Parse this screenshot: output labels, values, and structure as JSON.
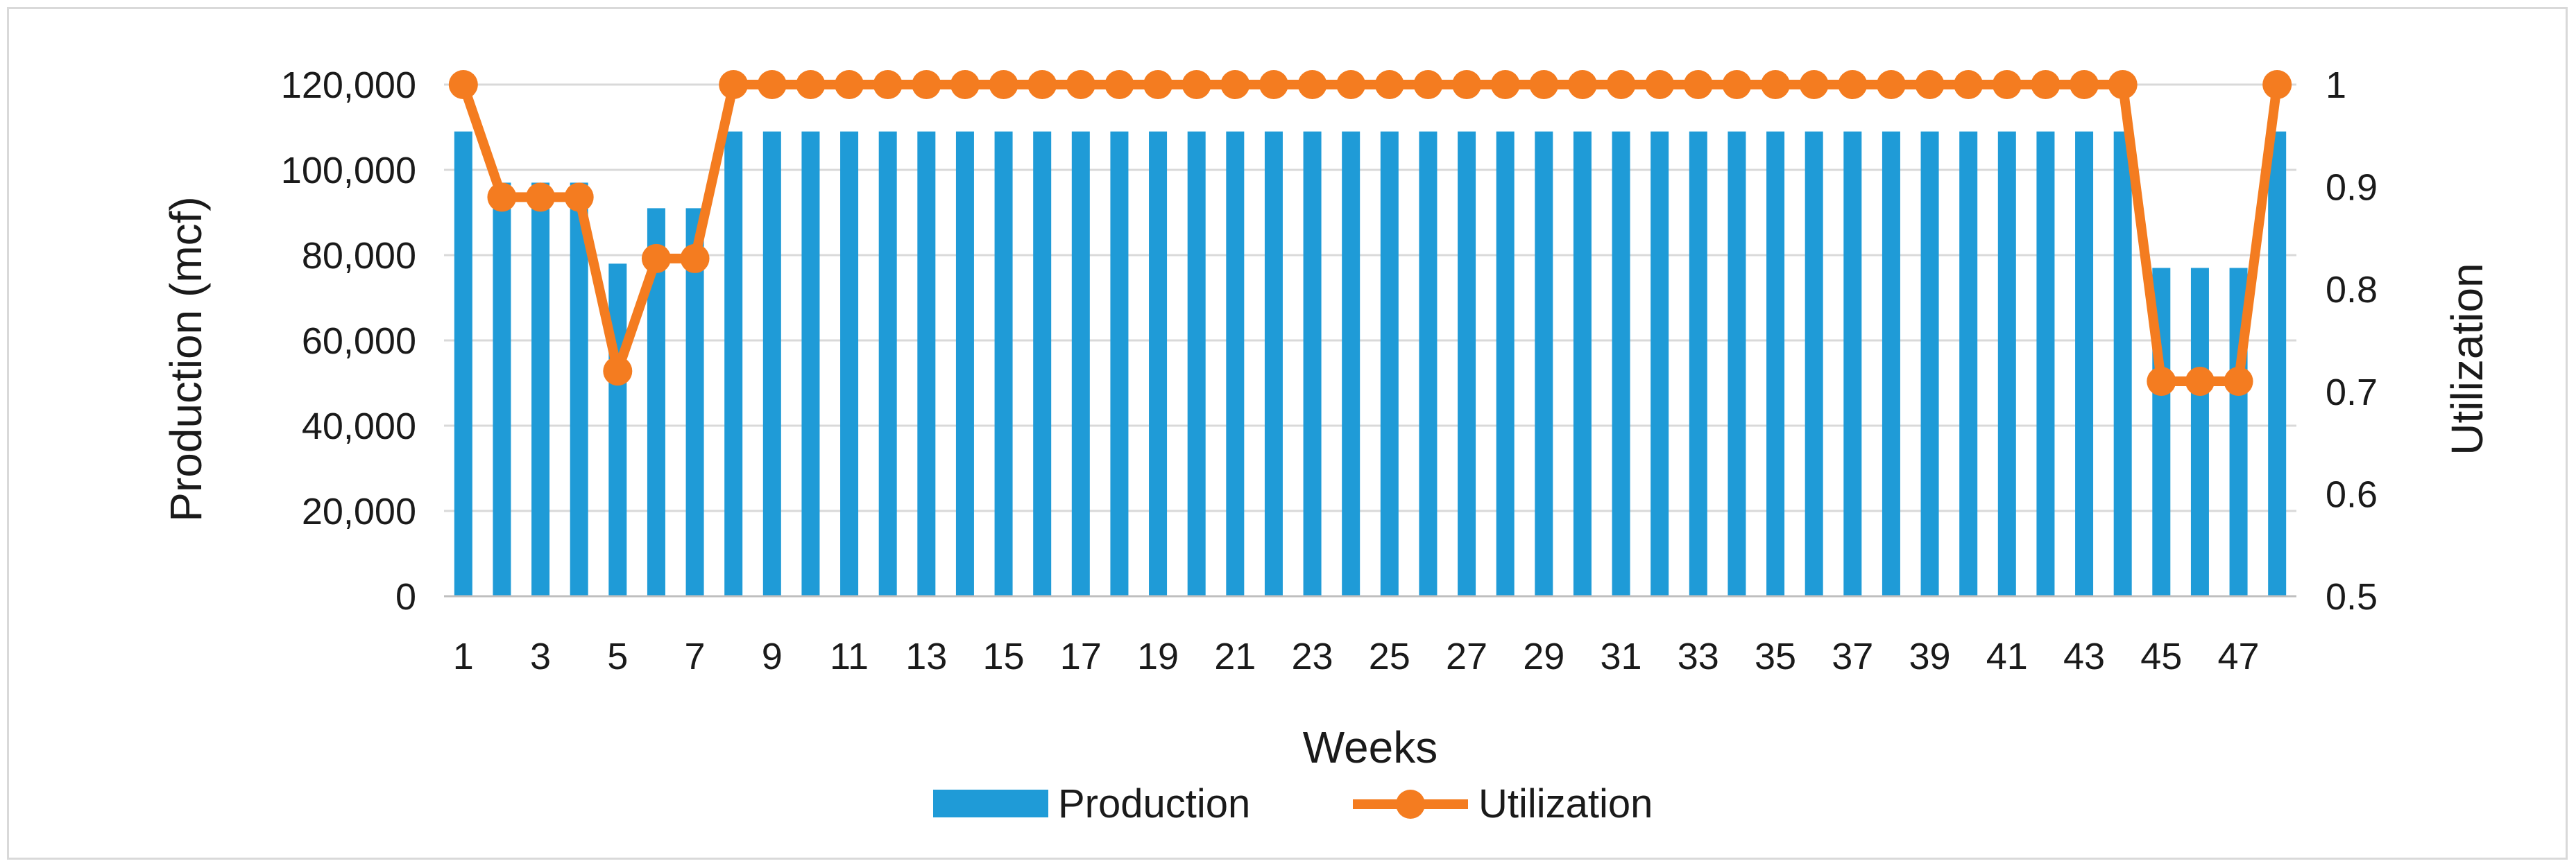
{
  "chart_data": {
    "type": "bar",
    "title": "",
    "xlabel": "Weeks",
    "ylabel": "Production (mcf)",
    "y2label": "Utilization",
    "ylim": [
      0,
      120000
    ],
    "y2lim": [
      0.5,
      1
    ],
    "y_ticks": [
      "0",
      "20,000",
      "40,000",
      "60,000",
      "80,000",
      "100,000",
      "120,000"
    ],
    "y_tick_values": [
      0,
      20000,
      40000,
      60000,
      80000,
      100000,
      120000
    ],
    "y2_ticks": [
      "0.5",
      "0.6",
      "0.7",
      "0.8",
      "0.9",
      "1"
    ],
    "y2_tick_values": [
      0.5,
      0.6,
      0.7,
      0.8,
      0.9,
      1.0
    ],
    "grid": true,
    "legend_position": "bottom",
    "categories": [
      1,
      2,
      3,
      4,
      5,
      6,
      7,
      8,
      9,
      10,
      11,
      12,
      13,
      14,
      15,
      16,
      17,
      18,
      19,
      20,
      21,
      22,
      23,
      24,
      25,
      26,
      27,
      28,
      29,
      30,
      31,
      32,
      33,
      34,
      35,
      36,
      37,
      38,
      39,
      40,
      41,
      42,
      43,
      44,
      45,
      46,
      47,
      48
    ],
    "x_tick_labels": [
      "1",
      "3",
      "5",
      "7",
      "9",
      "11",
      "13",
      "15",
      "17",
      "19",
      "21",
      "23",
      "25",
      "27",
      "29",
      "31",
      "33",
      "35",
      "37",
      "39",
      "41",
      "43",
      "45",
      "47"
    ],
    "series": [
      {
        "name": "Production",
        "type": "bar",
        "axis": "left",
        "color": "#1f9bd7",
        "values": [
          109000,
          97000,
          97000,
          97000,
          78000,
          91000,
          91000,
          109000,
          109000,
          109000,
          109000,
          109000,
          109000,
          109000,
          109000,
          109000,
          109000,
          109000,
          109000,
          109000,
          109000,
          109000,
          109000,
          109000,
          109000,
          109000,
          109000,
          109000,
          109000,
          109000,
          109000,
          109000,
          109000,
          109000,
          109000,
          109000,
          109000,
          109000,
          109000,
          109000,
          109000,
          109000,
          109000,
          109000,
          77000,
          77000,
          77000,
          109000
        ]
      },
      {
        "name": "Utilization",
        "type": "line",
        "axis": "right",
        "color": "#f47c20",
        "values": [
          1,
          0.89,
          0.89,
          0.89,
          0.72,
          0.83,
          0.83,
          1,
          1,
          1,
          1,
          1,
          1,
          1,
          1,
          1,
          1,
          1,
          1,
          1,
          1,
          1,
          1,
          1,
          1,
          1,
          1,
          1,
          1,
          1,
          1,
          1,
          1,
          1,
          1,
          1,
          1,
          1,
          1,
          1,
          1,
          1,
          1,
          1,
          0.71,
          0.71,
          0.71,
          1
        ]
      }
    ]
  }
}
